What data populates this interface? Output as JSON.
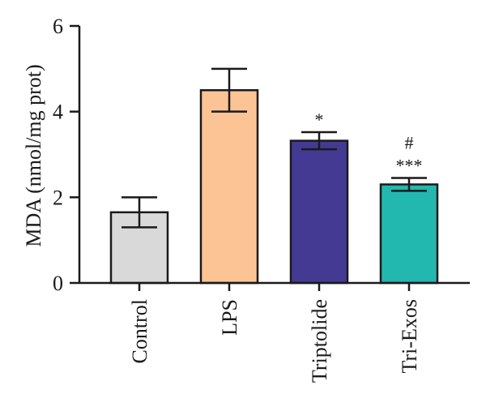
{
  "chart_data": {
    "type": "bar",
    "ylabel": "MDA (nmol/mg prot)",
    "ylim": [
      0,
      6
    ],
    "yticks": [
      "0",
      "2",
      "4",
      "6"
    ],
    "grid": false,
    "categories": [
      "Control",
      "LPS",
      "Triptolide",
      "Tri-Exos"
    ],
    "values": [
      1.65,
      4.5,
      3.32,
      2.3
    ],
    "errors": [
      0.35,
      0.5,
      0.2,
      0.15
    ],
    "colors": [
      "#d9d9d9",
      "#fcc494",
      "#443a93",
      "#22b8b0"
    ],
    "annotations": [
      {
        "category": "Triptolide",
        "lines": [
          "*"
        ]
      },
      {
        "category": "Tri-Exos",
        "lines": [
          "#",
          "***"
        ]
      }
    ]
  }
}
